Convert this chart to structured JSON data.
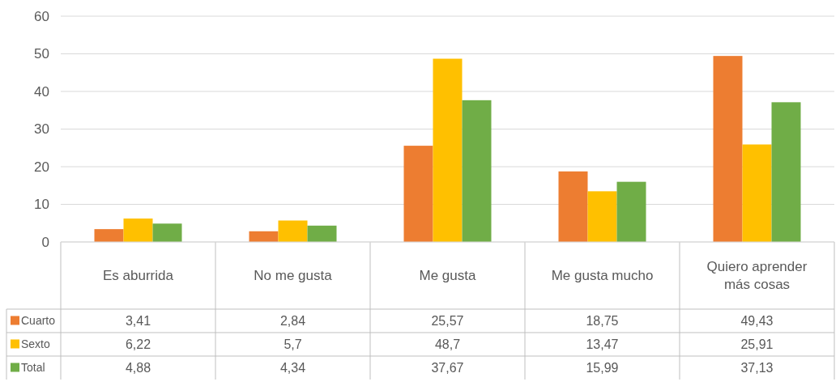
{
  "chart_data": {
    "type": "bar",
    "categories": [
      "Es aburrida",
      "No me gusta",
      "Me gusta",
      "Me gusta mucho",
      "Quiero aprender más cosas"
    ],
    "series": [
      {
        "name": "Cuarto",
        "color": "#ed7d31",
        "values": [
          3.41,
          2.84,
          25.57,
          18.75,
          49.43
        ],
        "value_labels": [
          "3,41",
          "2,84",
          "25,57",
          "18,75",
          "49,43"
        ]
      },
      {
        "name": "Sexto",
        "color": "#ffc000",
        "values": [
          6.22,
          5.7,
          48.7,
          13.47,
          25.91
        ],
        "value_labels": [
          "6,22",
          "5,7",
          "48,7",
          "13,47",
          "25,91"
        ]
      },
      {
        "name": "Total",
        "color": "#70ad47",
        "values": [
          4.88,
          4.34,
          37.67,
          15.99,
          37.13
        ],
        "value_labels": [
          "4,88",
          "4,34",
          "37,67",
          "15,99",
          "37,13"
        ]
      }
    ],
    "ylim": [
      0,
      60
    ],
    "yticks": [
      0,
      10,
      20,
      30,
      40,
      50,
      60
    ],
    "grid": "y",
    "legend": "bottom"
  }
}
